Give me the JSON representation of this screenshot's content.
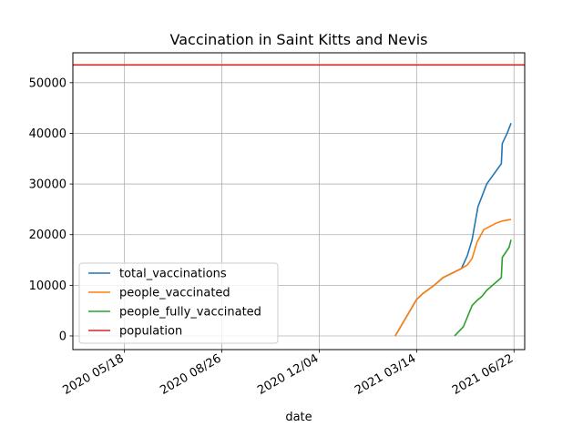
{
  "chart_data": {
    "type": "line",
    "title": "Vaccination in Saint Kitts and Nevis",
    "xlabel": "date",
    "ylabel": "",
    "x_axis_type": "date",
    "xlim": [
      "2020-03-26",
      "2021-07-03"
    ],
    "ylim": [
      -2700,
      55900
    ],
    "x_ticks": [
      "2020-05-18",
      "2020-08-26",
      "2020-12-04",
      "2021-03-14",
      "2021-06-22"
    ],
    "x_tick_labels": [
      "2020 05/18",
      "2020 08/26",
      "2020 12/04",
      "2021 03/14",
      "2021 06/22"
    ],
    "y_ticks": [
      0,
      10000,
      20000,
      30000,
      40000,
      50000
    ],
    "y_tick_labels": [
      "0",
      "10000",
      "20000",
      "30000",
      "40000",
      "50000"
    ],
    "grid": true,
    "legend_position": "lower-left",
    "series": [
      {
        "name": "total_vaccinations",
        "color": "#1f77b4",
        "points": [
          [
            "2021-02-20",
            0
          ],
          [
            "2021-03-14",
            7200
          ],
          [
            "2021-03-20",
            8300
          ],
          [
            "2021-04-01",
            10000
          ],
          [
            "2021-04-10",
            11500
          ],
          [
            "2021-04-29",
            13300
          ],
          [
            "2021-05-05",
            15800
          ],
          [
            "2021-05-10",
            19000
          ],
          [
            "2021-05-16",
            25500
          ],
          [
            "2021-05-25",
            30000
          ],
          [
            "2021-06-09",
            34000
          ],
          [
            "2021-06-10",
            38000
          ],
          [
            "2021-06-15",
            40000
          ],
          [
            "2021-06-19",
            42000
          ]
        ]
      },
      {
        "name": "people_vaccinated",
        "color": "#ff7f0e",
        "points": [
          [
            "2021-02-20",
            0
          ],
          [
            "2021-03-14",
            7200
          ],
          [
            "2021-03-20",
            8300
          ],
          [
            "2021-04-01",
            10000
          ],
          [
            "2021-04-10",
            11500
          ],
          [
            "2021-04-29",
            13300
          ],
          [
            "2021-05-05",
            14000
          ],
          [
            "2021-05-10",
            15300
          ],
          [
            "2021-05-15",
            18500
          ],
          [
            "2021-05-22",
            21000
          ],
          [
            "2021-06-04",
            22300
          ],
          [
            "2021-06-10",
            22700
          ],
          [
            "2021-06-19",
            23000
          ]
        ]
      },
      {
        "name": "people_fully_vaccinated",
        "color": "#2ca02c",
        "points": [
          [
            "2021-04-22",
            0
          ],
          [
            "2021-05-01",
            1800
          ],
          [
            "2021-05-10",
            6000
          ],
          [
            "2021-05-15",
            7000
          ],
          [
            "2021-05-20",
            7800
          ],
          [
            "2021-05-25",
            9000
          ],
          [
            "2021-06-09",
            11500
          ],
          [
            "2021-06-10",
            15500
          ],
          [
            "2021-06-17",
            17500
          ],
          [
            "2021-06-19",
            19000
          ]
        ]
      },
      {
        "name": "population",
        "color": "#d62728",
        "points": [
          [
            "2020-03-26",
            53500
          ],
          [
            "2021-07-03",
            53500
          ]
        ]
      }
    ]
  }
}
